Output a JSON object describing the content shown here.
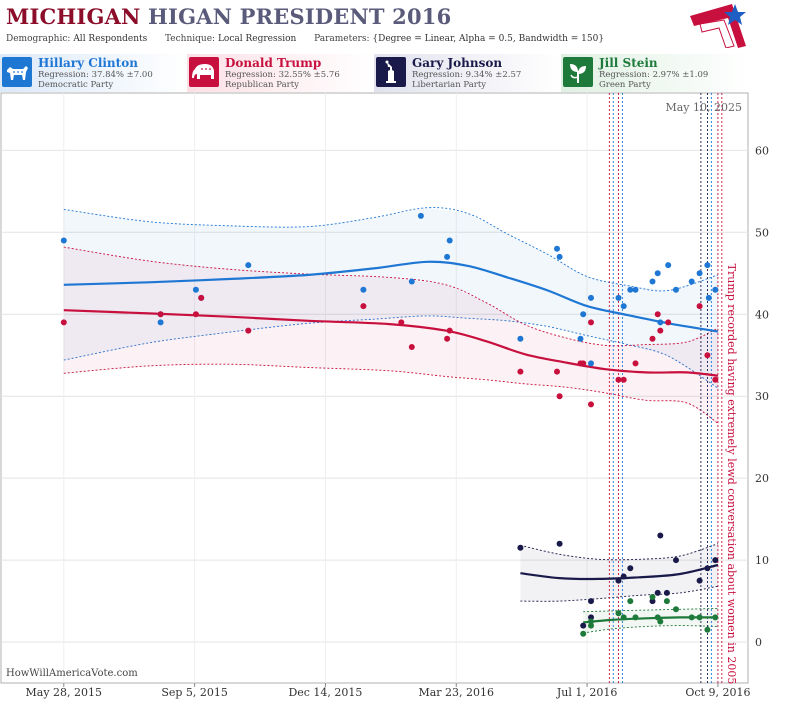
{
  "header": {
    "title_part1": "MICHIGAN",
    "title_part2": "HIGAN PRESIDENT 2016",
    "demographic_label": "Demographic:",
    "demographic_value": "All Respondents",
    "technique_label": "Technique:",
    "technique_value": "Local Regression",
    "parameters_label": "Parameters:",
    "parameters_value": "{Degree = Linear, Alpha = 0.5, Bandwidth = 150}"
  },
  "candidates": [
    {
      "name": "Hillary Clinton",
      "regression": "Regression: 37.84% ±7.00",
      "party": "Democratic Party",
      "color": "#1f77d4",
      "icon": "donkey-icon"
    },
    {
      "name": "Donald Trump",
      "regression": "Regression: 32.55% ±5.76",
      "party": "Republican Party",
      "color": "#c8103e",
      "icon": "elephant-icon"
    },
    {
      "name": "Gary Johnson",
      "regression": "Regression: 9.34% ±2.57",
      "party": "Libertarian Party",
      "color": "#1a1a4a",
      "icon": "statue-of-liberty-icon"
    },
    {
      "name": "Jill Stein",
      "regression": "Regression: 2.97% ±1.09",
      "party": "Green Party",
      "color": "#1e7a3a",
      "icon": "green-leaf-icon"
    }
  ],
  "source": "HowWillAmericaVote.com",
  "chart_data": {
    "type": "scatter",
    "date_label": "May 10, 2025",
    "x_ticks": [
      "May 28, 2015",
      "Sep 5, 2015",
      "Dec 14, 2015",
      "Mar 23, 2016",
      "Jul 1, 2016",
      "Oct 9, 2016"
    ],
    "x_tick_dates": [
      "2015-05-28",
      "2015-09-05",
      "2015-12-14",
      "2016-03-23",
      "2016-07-01",
      "2016-10-09"
    ],
    "y_ticks": [
      0,
      10,
      20,
      30,
      40,
      50,
      60
    ],
    "ylim": [
      -5,
      67
    ],
    "xlim": [
      "2015-04-10",
      "2016-11-01"
    ],
    "grid": true,
    "annotation": "Trump recorded having extremely lewd conversation about women in 2005",
    "event_lines": [
      {
        "date": "2016-07-18",
        "color": "#c8103e"
      },
      {
        "date": "2016-07-21",
        "color": "#1f77d4"
      },
      {
        "date": "2016-07-25",
        "color": "#c8103e"
      },
      {
        "date": "2016-07-28",
        "color": "#1f77d4"
      },
      {
        "date": "2016-09-26",
        "color": "#1a1a4a"
      },
      {
        "date": "2016-10-01",
        "color": "#1a1a4a"
      },
      {
        "date": "2016-10-04",
        "color": "#1f77d4"
      },
      {
        "date": "2016-10-09",
        "color": "#c8103e"
      },
      {
        "date": "2016-10-12",
        "color": "#c8103e"
      }
    ],
    "series": [
      {
        "name": "Hillary Clinton",
        "color": "#1f77d4",
        "points": [
          [
            "2015-05-28",
            49
          ],
          [
            "2015-08-10",
            40
          ],
          [
            "2015-08-10",
            39
          ],
          [
            "2015-09-06",
            43
          ],
          [
            "2015-09-10",
            42
          ],
          [
            "2015-10-16",
            46
          ],
          [
            "2016-01-12",
            43
          ],
          [
            "2016-02-18",
            44
          ],
          [
            "2016-02-25",
            52
          ],
          [
            "2016-03-16",
            47
          ],
          [
            "2016-03-18",
            49
          ],
          [
            "2016-05-11",
            37
          ],
          [
            "2016-06-08",
            48
          ],
          [
            "2016-06-10",
            47
          ],
          [
            "2016-06-26",
            37
          ],
          [
            "2016-06-28",
            40
          ],
          [
            "2016-07-04",
            42
          ],
          [
            "2016-07-04",
            34
          ],
          [
            "2016-07-25",
            42
          ],
          [
            "2016-07-29",
            41
          ],
          [
            "2016-08-03",
            43
          ],
          [
            "2016-08-07",
            43
          ],
          [
            "2016-08-20",
            44
          ],
          [
            "2016-08-24",
            45
          ],
          [
            "2016-08-26",
            39
          ],
          [
            "2016-09-01",
            46
          ],
          [
            "2016-09-07",
            43
          ],
          [
            "2016-09-19",
            44
          ],
          [
            "2016-09-25",
            45
          ],
          [
            "2016-10-01",
            46
          ],
          [
            "2016-10-02",
            42
          ],
          [
            "2016-10-07",
            43
          ]
        ],
        "trend": [
          [
            "2015-05-28",
            43.6
          ],
          [
            "2015-08-01",
            43.9
          ],
          [
            "2015-10-01",
            44.3
          ],
          [
            "2015-12-01",
            44.8
          ],
          [
            "2016-01-20",
            45.6
          ],
          [
            "2016-03-01",
            46.4
          ],
          [
            "2016-04-01",
            45.9
          ],
          [
            "2016-05-01",
            44.5
          ],
          [
            "2016-06-01",
            42.9
          ],
          [
            "2016-07-01",
            41.0
          ],
          [
            "2016-08-01",
            39.9
          ],
          [
            "2016-09-01",
            38.9
          ],
          [
            "2016-10-09",
            37.9
          ]
        ],
        "upper": [
          [
            "2015-05-28",
            52.8
          ],
          [
            "2015-08-01",
            51.3
          ],
          [
            "2015-10-01",
            50.8
          ],
          [
            "2015-12-01",
            50.7
          ],
          [
            "2016-01-20",
            51.8
          ],
          [
            "2016-03-01",
            53.0
          ],
          [
            "2016-04-01",
            52.3
          ],
          [
            "2016-05-01",
            49.8
          ],
          [
            "2016-06-01",
            47.3
          ],
          [
            "2016-07-01",
            44.6
          ],
          [
            "2016-08-01",
            43.5
          ],
          [
            "2016-09-01",
            42.9
          ],
          [
            "2016-10-09",
            44.8
          ]
        ],
        "lower": [
          [
            "2015-05-28",
            34.4
          ],
          [
            "2015-08-01",
            36.5
          ],
          [
            "2015-10-01",
            37.8
          ],
          [
            "2015-12-01",
            38.9
          ],
          [
            "2016-01-20",
            39.4
          ],
          [
            "2016-03-01",
            39.8
          ],
          [
            "2016-04-01",
            39.5
          ],
          [
            "2016-05-01",
            39.2
          ],
          [
            "2016-06-01",
            38.5
          ],
          [
            "2016-07-01",
            37.4
          ],
          [
            "2016-08-01",
            36.3
          ],
          [
            "2016-09-01",
            34.9
          ],
          [
            "2016-10-09",
            31.0
          ]
        ]
      },
      {
        "name": "Donald Trump",
        "color": "#c8103e",
        "points": [
          [
            "2015-05-28",
            39
          ],
          [
            "2015-08-10",
            40
          ],
          [
            "2015-09-06",
            40
          ],
          [
            "2015-09-10",
            42
          ],
          [
            "2015-10-16",
            38
          ],
          [
            "2016-01-12",
            41
          ],
          [
            "2016-02-10",
            39
          ],
          [
            "2016-02-18",
            36
          ],
          [
            "2016-03-16",
            37
          ],
          [
            "2016-03-18",
            38
          ],
          [
            "2016-05-11",
            33
          ],
          [
            "2016-06-08",
            33
          ],
          [
            "2016-06-10",
            30
          ],
          [
            "2016-06-26",
            34
          ],
          [
            "2016-06-28",
            34
          ],
          [
            "2016-07-04",
            29
          ],
          [
            "2016-07-04",
            39
          ],
          [
            "2016-07-25",
            32
          ],
          [
            "2016-07-29",
            32
          ],
          [
            "2016-08-07",
            34
          ],
          [
            "2016-08-20",
            37
          ],
          [
            "2016-08-24",
            40
          ],
          [
            "2016-08-26",
            38
          ],
          [
            "2016-09-01",
            39
          ],
          [
            "2016-09-25",
            41
          ],
          [
            "2016-10-01",
            35
          ],
          [
            "2016-10-07",
            32
          ]
        ],
        "trend": [
          [
            "2015-05-28",
            40.5
          ],
          [
            "2015-08-01",
            40.1
          ],
          [
            "2015-10-01",
            39.7
          ],
          [
            "2015-12-01",
            39.2
          ],
          [
            "2016-02-01",
            38.8
          ],
          [
            "2016-03-15",
            38.0
          ],
          [
            "2016-04-15",
            36.7
          ],
          [
            "2016-05-15",
            35.1
          ],
          [
            "2016-06-15",
            34.1
          ],
          [
            "2016-07-15",
            33.3
          ],
          [
            "2016-08-15",
            32.9
          ],
          [
            "2016-09-15",
            32.9
          ],
          [
            "2016-10-09",
            32.5
          ]
        ],
        "upper": [
          [
            "2015-05-28",
            48.2
          ],
          [
            "2015-08-01",
            46.5
          ],
          [
            "2015-10-01",
            45.5
          ],
          [
            "2015-12-01",
            44.9
          ],
          [
            "2016-02-01",
            44.5
          ],
          [
            "2016-03-15",
            43.6
          ],
          [
            "2016-04-15",
            41.4
          ],
          [
            "2016-05-15",
            38.7
          ],
          [
            "2016-06-15",
            37.1
          ],
          [
            "2016-07-15",
            36.2
          ],
          [
            "2016-08-15",
            36.3
          ],
          [
            "2016-09-15",
            36.6
          ],
          [
            "2016-10-09",
            38.3
          ]
        ],
        "lower": [
          [
            "2015-05-28",
            32.8
          ],
          [
            "2015-08-01",
            33.7
          ],
          [
            "2015-10-01",
            33.9
          ],
          [
            "2015-12-01",
            33.5
          ],
          [
            "2016-02-01",
            33.1
          ],
          [
            "2016-03-15",
            32.4
          ],
          [
            "2016-04-15",
            32.0
          ],
          [
            "2016-05-15",
            31.5
          ],
          [
            "2016-06-15",
            31.1
          ],
          [
            "2016-07-15",
            30.4
          ],
          [
            "2016-08-15",
            29.5
          ],
          [
            "2016-09-15",
            29.2
          ],
          [
            "2016-10-09",
            26.7
          ]
        ]
      },
      {
        "name": "Gary Johnson",
        "color": "#1a1a4a",
        "points": [
          [
            "2016-05-11",
            11.5
          ],
          [
            "2016-06-10",
            12
          ],
          [
            "2016-06-28",
            2
          ],
          [
            "2016-07-04",
            5
          ],
          [
            "2016-07-04",
            3
          ],
          [
            "2016-07-25",
            7.5
          ],
          [
            "2016-07-29",
            8
          ],
          [
            "2016-08-03",
            9
          ],
          [
            "2016-08-20",
            5
          ],
          [
            "2016-08-24",
            6
          ],
          [
            "2016-08-26",
            13
          ],
          [
            "2016-08-31",
            6
          ],
          [
            "2016-09-07",
            10
          ],
          [
            "2016-09-25",
            7.5
          ],
          [
            "2016-10-01",
            9
          ],
          [
            "2016-10-07",
            10
          ]
        ],
        "trend": [
          [
            "2016-05-11",
            8.4
          ],
          [
            "2016-06-10",
            7.8
          ],
          [
            "2016-07-10",
            7.7
          ],
          [
            "2016-08-10",
            7.9
          ],
          [
            "2016-09-10",
            8.3
          ],
          [
            "2016-10-09",
            9.4
          ]
        ],
        "upper": [
          [
            "2016-05-11",
            11.8
          ],
          [
            "2016-06-10",
            10.7
          ],
          [
            "2016-07-10",
            10.1
          ],
          [
            "2016-08-10",
            10.1
          ],
          [
            "2016-09-10",
            10.5
          ],
          [
            "2016-10-09",
            12.0
          ]
        ],
        "lower": [
          [
            "2016-05-11",
            5.0
          ],
          [
            "2016-06-10",
            5.0
          ],
          [
            "2016-07-10",
            5.3
          ],
          [
            "2016-08-10",
            5.7
          ],
          [
            "2016-09-10",
            6.0
          ],
          [
            "2016-10-09",
            6.8
          ]
        ]
      },
      {
        "name": "Jill Stein",
        "color": "#1e7a3a",
        "points": [
          [
            "2016-06-28",
            1
          ],
          [
            "2016-07-04",
            2
          ],
          [
            "2016-07-04",
            2.5
          ],
          [
            "2016-07-25",
            3.5
          ],
          [
            "2016-07-29",
            3
          ],
          [
            "2016-08-03",
            5
          ],
          [
            "2016-08-07",
            3
          ],
          [
            "2016-08-20",
            5.5
          ],
          [
            "2016-08-24",
            3
          ],
          [
            "2016-08-26",
            2.5
          ],
          [
            "2016-08-31",
            5
          ],
          [
            "2016-09-07",
            4
          ],
          [
            "2016-09-19",
            3
          ],
          [
            "2016-09-25",
            3
          ],
          [
            "2016-10-01",
            1.5
          ],
          [
            "2016-10-07",
            3
          ]
        ],
        "trend": [
          [
            "2016-06-28",
            2.4
          ],
          [
            "2016-07-20",
            2.7
          ],
          [
            "2016-08-15",
            2.9
          ],
          [
            "2016-09-10",
            3.0
          ],
          [
            "2016-10-09",
            3.0
          ]
        ],
        "upper": [
          [
            "2016-06-28",
            3.7
          ],
          [
            "2016-07-20",
            3.8
          ],
          [
            "2016-08-15",
            3.9
          ],
          [
            "2016-09-10",
            4.0
          ],
          [
            "2016-10-09",
            4.1
          ]
        ],
        "lower": [
          [
            "2016-06-28",
            1.1
          ],
          [
            "2016-07-20",
            1.6
          ],
          [
            "2016-08-15",
            1.9
          ],
          [
            "2016-09-10",
            2.0
          ],
          [
            "2016-10-09",
            1.9
          ]
        ]
      }
    ]
  }
}
